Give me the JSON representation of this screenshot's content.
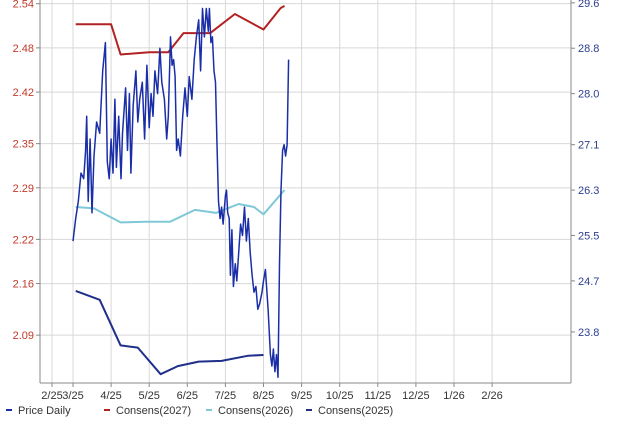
{
  "chart_data": {
    "type": "line",
    "title": "",
    "xlabel": "",
    "x_ticks": [
      "2/25",
      "3/25",
      "4/25",
      "5/25",
      "6/25",
      "7/25",
      "8/25",
      "9/25",
      "10/25",
      "11/25",
      "12/25",
      "1/26",
      "2/26"
    ],
    "y_left": {
      "min": 2.025,
      "max": 2.545,
      "ticks": [
        "2.54",
        "2.48",
        "2.42",
        "2.35",
        "2.29",
        "2.22",
        "2.16",
        "2.09"
      ],
      "tick_values": [
        2.54,
        2.48,
        2.42,
        2.35,
        2.29,
        2.22,
        2.16,
        2.09
      ],
      "color": "#c0392b"
    },
    "y_right": {
      "min": 22.9,
      "max": 29.65,
      "ticks": [
        "29.6",
        "28.8",
        "28.0",
        "27.1",
        "26.3",
        "25.5",
        "24.7",
        "23.8"
      ],
      "tick_values": [
        29.6,
        28.8,
        28.0,
        27.1,
        26.3,
        25.5,
        24.7,
        23.8
      ],
      "color": "#2c3e90"
    },
    "grid": true,
    "legend_position": "bottom",
    "series": [
      {
        "name": "Price Daily",
        "axis": "right",
        "color": "#1a2ea8",
        "points": [
          [
            0.0,
            25.4
          ],
          [
            0.07,
            25.8
          ],
          [
            0.14,
            26.1
          ],
          [
            0.21,
            26.6
          ],
          [
            0.28,
            26.5
          ],
          [
            0.33,
            27.0
          ],
          [
            0.36,
            27.6
          ],
          [
            0.4,
            26.1
          ],
          [
            0.45,
            27.2
          ],
          [
            0.5,
            25.9
          ],
          [
            0.55,
            26.9
          ],
          [
            0.62,
            27.5
          ],
          [
            0.7,
            27.3
          ],
          [
            0.78,
            28.4
          ],
          [
            0.85,
            28.9
          ],
          [
            0.9,
            26.8
          ],
          [
            0.95,
            26.5
          ],
          [
            1.0,
            27.2
          ],
          [
            1.05,
            26.6
          ],
          [
            1.1,
            27.9
          ],
          [
            1.14,
            26.7
          ],
          [
            1.2,
            27.6
          ],
          [
            1.26,
            26.5
          ],
          [
            1.3,
            27.3
          ],
          [
            1.38,
            28.1
          ],
          [
            1.43,
            27.0
          ],
          [
            1.48,
            28.0
          ],
          [
            1.52,
            26.6
          ],
          [
            1.58,
            27.8
          ],
          [
            1.65,
            28.4
          ],
          [
            1.7,
            27.5
          ],
          [
            1.75,
            27.9
          ],
          [
            1.82,
            28.2
          ],
          [
            1.88,
            27.2
          ],
          [
            1.94,
            28.5
          ],
          [
            2.0,
            27.4
          ],
          [
            2.05,
            28.0
          ],
          [
            2.1,
            27.6
          ],
          [
            2.15,
            28.4
          ],
          [
            2.22,
            28.0
          ],
          [
            2.28,
            28.8
          ],
          [
            2.33,
            28.2
          ],
          [
            2.4,
            27.9
          ],
          [
            2.46,
            27.2
          ],
          [
            2.5,
            27.6
          ],
          [
            2.56,
            29.0
          ],
          [
            2.6,
            28.5
          ],
          [
            2.64,
            28.6
          ],
          [
            2.68,
            28.3
          ],
          [
            2.72,
            27.0
          ],
          [
            2.76,
            27.2
          ],
          [
            2.82,
            26.9
          ],
          [
            2.88,
            27.6
          ],
          [
            2.94,
            28.1
          ],
          [
            3.0,
            27.6
          ],
          [
            3.05,
            28.3
          ],
          [
            3.12,
            27.9
          ],
          [
            3.18,
            28.6
          ],
          [
            3.24,
            29.0
          ],
          [
            3.3,
            29.3
          ],
          [
            3.35,
            28.4
          ],
          [
            3.4,
            29.5
          ],
          [
            3.45,
            29.0
          ],
          [
            3.5,
            29.5
          ],
          [
            3.55,
            29.1
          ],
          [
            3.58,
            29.5
          ],
          [
            3.62,
            28.9
          ],
          [
            3.66,
            29.0
          ],
          [
            3.7,
            28.4
          ],
          [
            3.74,
            28.2
          ],
          [
            3.78,
            27.1
          ],
          [
            3.82,
            26.1
          ],
          [
            3.86,
            25.8
          ],
          [
            3.9,
            26.0
          ],
          [
            3.94,
            25.7
          ],
          [
            4.0,
            26.2
          ],
          [
            4.03,
            26.3
          ],
          [
            4.06,
            25.9
          ],
          [
            4.1,
            25.8
          ],
          [
            4.13,
            24.8
          ],
          [
            4.17,
            25.6
          ],
          [
            4.21,
            24.6
          ],
          [
            4.26,
            25.0
          ],
          [
            4.3,
            24.7
          ],
          [
            4.35,
            25.2
          ],
          [
            4.4,
            25.7
          ],
          [
            4.45,
            25.5
          ],
          [
            4.5,
            26.0
          ],
          [
            4.55,
            25.4
          ],
          [
            4.6,
            25.8
          ],
          [
            4.65,
            25.2
          ],
          [
            4.7,
            24.8
          ],
          [
            4.75,
            24.5
          ],
          [
            4.8,
            24.6
          ],
          [
            4.85,
            24.2
          ],
          [
            4.9,
            24.3
          ],
          [
            4.96,
            24.5
          ],
          [
            5.0,
            24.7
          ],
          [
            5.05,
            24.9
          ],
          [
            5.12,
            24.2
          ],
          [
            5.18,
            23.4
          ],
          [
            5.22,
            23.2
          ],
          [
            5.26,
            23.5
          ],
          [
            5.3,
            23.1
          ],
          [
            5.34,
            23.4
          ],
          [
            5.38,
            23.0
          ],
          [
            5.42,
            25.0
          ],
          [
            5.46,
            26.3
          ],
          [
            5.5,
            27.0
          ],
          [
            5.54,
            27.1
          ],
          [
            5.58,
            26.9
          ],
          [
            5.62,
            27.1
          ],
          [
            5.66,
            28.6
          ]
        ]
      },
      {
        "name": "Consens(2027)",
        "axis": "left",
        "color": "#b22222",
        "points": [
          [
            0.07,
            2.512
          ],
          [
            1.0,
            2.512
          ],
          [
            1.25,
            2.471
          ],
          [
            2.0,
            2.474
          ],
          [
            2.5,
            2.474
          ],
          [
            2.9,
            2.5
          ],
          [
            3.6,
            2.5
          ],
          [
            4.25,
            2.526
          ],
          [
            5.0,
            2.505
          ],
          [
            5.45,
            2.534
          ],
          [
            5.55,
            2.537
          ]
        ]
      },
      {
        "name": "Consens(2026)",
        "axis": "left",
        "color": "#7ec8d8",
        "points": [
          [
            0.07,
            2.264
          ],
          [
            0.55,
            2.262
          ],
          [
            1.25,
            2.243
          ],
          [
            1.9,
            2.244
          ],
          [
            2.55,
            2.244
          ],
          [
            3.2,
            2.26
          ],
          [
            3.75,
            2.256
          ],
          [
            4.35,
            2.268
          ],
          [
            4.75,
            2.264
          ],
          [
            5.0,
            2.254
          ],
          [
            5.55,
            2.287
          ]
        ]
      },
      {
        "name": "Consens(2025)",
        "axis": "left",
        "color": "#1f2f8a",
        "points": [
          [
            0.07,
            2.15
          ],
          [
            0.7,
            2.138
          ],
          [
            1.25,
            2.076
          ],
          [
            1.7,
            2.073
          ],
          [
            2.3,
            2.037
          ],
          [
            2.75,
            2.048
          ],
          [
            3.3,
            2.054
          ],
          [
            3.9,
            2.055
          ],
          [
            4.6,
            2.062
          ],
          [
            5.0,
            2.063
          ]
        ]
      }
    ],
    "legend": [
      {
        "label": "Price Daily",
        "color": "#1a2ea8"
      },
      {
        "label": "Consens(2027)",
        "color": "#b22222"
      },
      {
        "label": "Consens(2026)",
        "color": "#7ec8d8"
      },
      {
        "label": "Consens(2025)",
        "color": "#1f2f8a"
      }
    ]
  }
}
